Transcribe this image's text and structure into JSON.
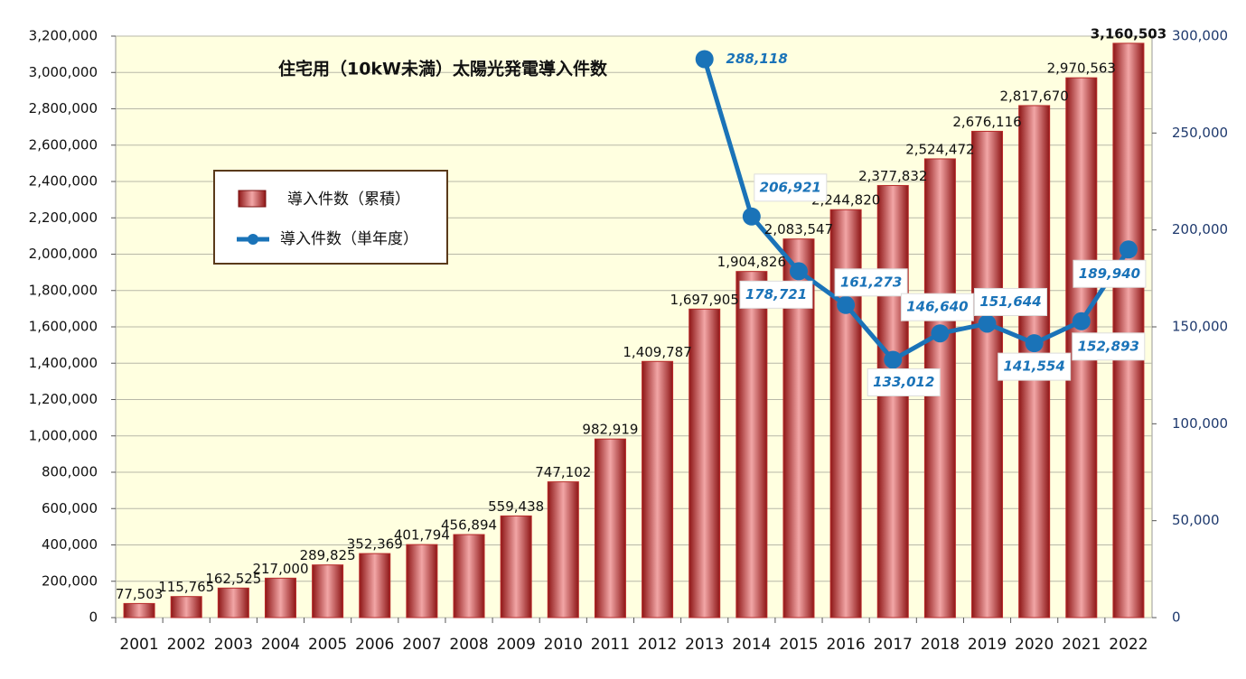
{
  "chart_data": {
    "type": "bar_line",
    "title": "住宅用（10kW未満）太陽光発電導入件数",
    "categories": [
      "2001",
      "2002",
      "2003",
      "2004",
      "2005",
      "2006",
      "2007",
      "2008",
      "2009",
      "2010",
      "2011",
      "2012",
      "2013",
      "2014",
      "2015",
      "2016",
      "2017",
      "2018",
      "2019",
      "2020",
      "2021",
      "2022"
    ],
    "series": [
      {
        "name": "導入件数（累積）",
        "type": "bar",
        "color": "#b82a2a",
        "values": [
          77503,
          115765,
          162525,
          217000,
          289825,
          352369,
          401794,
          456894,
          559438,
          747102,
          982919,
          1409787,
          1697905,
          1904826,
          2083547,
          2244820,
          2377832,
          2524472,
          2676116,
          2817670,
          2970563,
          3160503
        ],
        "value_labels": [
          "77,503",
          "115,765",
          "162,525",
          "217,000",
          "289,825",
          "352,369",
          "401,794",
          "456,894",
          "559,438",
          "747,102",
          "982,919",
          "1,409,787",
          "1,697,905",
          "1,904,826",
          "2,083,547",
          "2,244,820",
          "2,377,832",
          "2,524,472",
          "2,676,116",
          "2,817,670",
          "2,970,563",
          "3,160,503"
        ]
      },
      {
        "name": "導入件数（単年度）",
        "type": "line",
        "axis": "y2",
        "color": "#1a73b8",
        "values": [
          null,
          null,
          null,
          null,
          null,
          null,
          null,
          null,
          null,
          null,
          null,
          null,
          288118,
          206921,
          178721,
          161273,
          133012,
          146640,
          151644,
          141554,
          152893,
          189940
        ],
        "value_labels": [
          null,
          null,
          null,
          null,
          null,
          null,
          null,
          null,
          null,
          null,
          null,
          null,
          "288,118",
          "206,921",
          "178,721",
          "161,273",
          "133,012",
          "146,640",
          "151,644",
          "141,554",
          "152,893",
          "189,940"
        ]
      }
    ],
    "ylim": [
      0,
      3200000
    ],
    "yticks": [
      0,
      {
        "value": 200000,
        "label": "200,000"
      },
      {
        "value": 400000,
        "label": "400,000"
      },
      {
        "value": 600000,
        "label": "600,000"
      },
      {
        "value": 800000,
        "label": "800,000"
      },
      {
        "value": 1000000,
        "label": "1,000,000"
      },
      {
        "value": 1200000,
        "label": "1,200,000"
      },
      {
        "value": 1400000,
        "label": "1,400,000"
      },
      {
        "value": 1600000,
        "label": "1,600,000"
      },
      {
        "value": 1800000,
        "label": "1,800,000"
      },
      {
        "value": 2000000,
        "label": "2,000,000"
      },
      {
        "value": 2200000,
        "label": "2,200,000"
      },
      {
        "value": 2400000,
        "label": "2,400,000"
      },
      {
        "value": 2600000,
        "label": "2,600,000"
      },
      {
        "value": 2800000,
        "label": "2,800,000"
      },
      {
        "value": 3000000,
        "label": "3,000,000"
      },
      {
        "value": 3200000,
        "label": "3,200,000"
      }
    ],
    "y2lim": [
      0,
      300000
    ],
    "y2ticks": [
      0,
      {
        "value": 50000,
        "label": "50,000"
      },
      {
        "value": 100000,
        "label": "100,000"
      },
      {
        "value": 150000,
        "label": "150,000"
      },
      {
        "value": 200000,
        "label": "200,000"
      },
      {
        "value": 250000,
        "label": "250,000"
      },
      {
        "value": 300000,
        "label": "300,000"
      }
    ],
    "grid": true
  }
}
